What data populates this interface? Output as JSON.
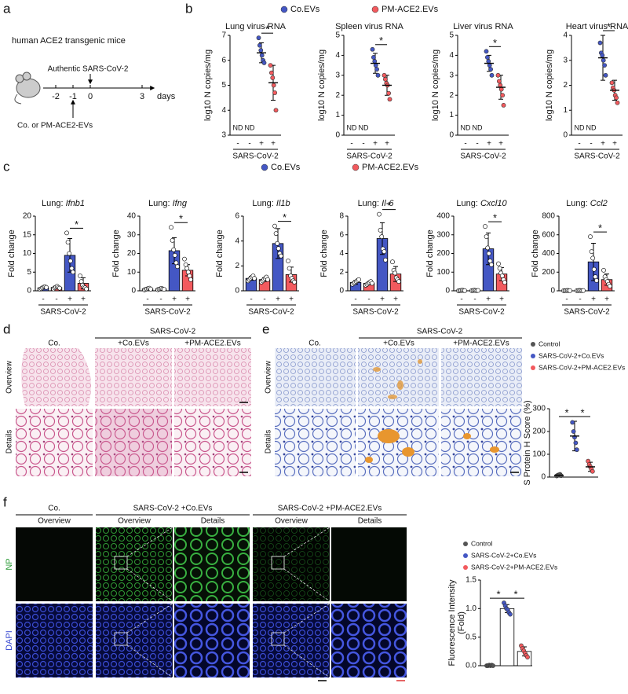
{
  "figure": {
    "panel_labels": [
      "a",
      "b",
      "c",
      "d",
      "e",
      "f"
    ],
    "panel_a": {
      "title": "human ACE2 transgenic mice",
      "infection": "Authentic SARS-CoV-2",
      "treatment": "Co. or PM-ACE2-EVs",
      "timeline": [
        -2,
        -1,
        0,
        3
      ],
      "unit": "days"
    },
    "legend_b": [
      {
        "name": "Co.EVs",
        "color": "#4457c4"
      },
      {
        "name": "PM-ACE2.EVs",
        "color": "#f25a5e"
      }
    ],
    "legend_c": [
      {
        "name": "Co.EVs",
        "color": "#4457c4"
      },
      {
        "name": "PM-ACE2.EVs",
        "color": "#f25a5e"
      }
    ],
    "panel_d": {
      "condition": "SARS-CoV-2",
      "columns": [
        "Co.",
        "+Co.EVs",
        "+PM-ACE2.EVs"
      ],
      "rows": [
        "Overview",
        "Details"
      ]
    },
    "panel_e": {
      "condition": "SARS-CoV-2",
      "columns": [
        "Co.",
        "+Co.EVs",
        "+PM-ACE2.EVs"
      ],
      "rows": [
        "Overview",
        "Details"
      ]
    },
    "panel_f": {
      "columns": [
        "Co.",
        "SARS-CoV-2 +Co.EVs",
        "SARS-CoV-2 +PM-ACE2.EVs"
      ],
      "subcolumns": [
        "Overview",
        "Overview",
        "Details",
        "Overview",
        "Details"
      ],
      "rows": [
        "NP",
        "DAPI"
      ]
    }
  },
  "chart_data": [
    {
      "type": "dot",
      "title": "Lung virus RNA",
      "ylabel": "log10 N copies/mg",
      "ylim": [
        3,
        7
      ],
      "yticks": [
        3,
        4,
        5,
        6,
        7
      ],
      "categories": [
        "-",
        "-",
        "+",
        "+"
      ],
      "group_label": "SARS-CoV-2",
      "colors": [
        "#4457c4",
        "#f25a5e",
        "#4457c4",
        "#f25a5e"
      ],
      "nd_labels": [
        "ND",
        "ND",
        null,
        null
      ],
      "means": [
        null,
        null,
        6.3,
        5.1
      ],
      "errors": [
        null,
        null,
        0.4,
        0.7
      ],
      "points": [
        [],
        [],
        [
          6.9,
          6.6,
          6.4,
          6.2,
          6.0,
          5.9
        ],
        [
          5.8,
          5.5,
          5.3,
          5.0,
          4.7,
          4.0
        ]
      ],
      "significance": [
        {
          "label": "*",
          "groups": [
            2,
            3
          ]
        }
      ]
    },
    {
      "type": "dot",
      "title": "Spleen virus RNA",
      "ylabel": "log10 N copies/mg",
      "ylim": [
        0,
        5
      ],
      "yticks": [
        0,
        1,
        2,
        3,
        4,
        5
      ],
      "categories": [
        "-",
        "-",
        "+",
        "+"
      ],
      "group_label": "SARS-CoV-2",
      "colors": [
        "#4457c4",
        "#f25a5e",
        "#4457c4",
        "#f25a5e"
      ],
      "nd_labels": [
        "ND",
        "ND",
        null,
        null
      ],
      "means": [
        null,
        null,
        3.6,
        2.5
      ],
      "errors": [
        null,
        null,
        0.5,
        0.5
      ],
      "points": [
        [],
        [],
        [
          4.3,
          3.9,
          3.7,
          3.5,
          3.3,
          3.0
        ],
        [
          3.0,
          2.8,
          2.6,
          2.5,
          2.1,
          1.8
        ]
      ],
      "significance": [
        {
          "label": "*",
          "groups": [
            2,
            3
          ]
        }
      ]
    },
    {
      "type": "dot",
      "title": "Liver virus RNA",
      "ylabel": "log10 N copies/mg",
      "ylim": [
        0,
        5
      ],
      "yticks": [
        0,
        1,
        2,
        3,
        4,
        5
      ],
      "categories": [
        "-",
        "-",
        "+",
        "+"
      ],
      "group_label": "SARS-CoV-2",
      "colors": [
        "#4457c4",
        "#f25a5e",
        "#4457c4",
        "#f25a5e"
      ],
      "nd_labels": [
        "ND",
        "ND",
        null,
        null
      ],
      "means": [
        null,
        null,
        3.6,
        2.4
      ],
      "errors": [
        null,
        null,
        0.4,
        0.6
      ],
      "points": [
        [],
        [],
        [
          4.2,
          3.9,
          3.7,
          3.5,
          3.3,
          3.0
        ],
        [
          3.0,
          2.7,
          2.5,
          2.3,
          2.0,
          1.5
        ]
      ],
      "significance": [
        {
          "label": "*",
          "groups": [
            2,
            3
          ]
        }
      ]
    },
    {
      "type": "dot",
      "title": "Heart virus RNA",
      "ylabel": "log10 N copies/mg",
      "ylim": [
        0,
        4
      ],
      "yticks": [
        0,
        1,
        2,
        3,
        4
      ],
      "categories": [
        "-",
        "-",
        "+",
        "+"
      ],
      "group_label": "SARS-CoV-2",
      "colors": [
        "#4457c4",
        "#f25a5e",
        "#4457c4",
        "#f25a5e"
      ],
      "nd_labels": [
        "ND",
        "ND",
        null,
        null
      ],
      "means": [
        null,
        null,
        3.1,
        1.8
      ],
      "errors": [
        null,
        null,
        0.9,
        0.4
      ],
      "points": [
        [],
        [],
        [
          3.7,
          3.3,
          3.2,
          3.0,
          2.8,
          2.4
        ],
        [
          2.1,
          1.9,
          1.8,
          1.6,
          1.5,
          1.3
        ]
      ],
      "significance": [
        {
          "label": "*",
          "groups": [
            2,
            3
          ]
        }
      ]
    },
    {
      "type": "bar",
      "title": "Lung:",
      "gene": "Ifnb1",
      "ylabel": "Fold change",
      "ylim": [
        0,
        20
      ],
      "yticks": [
        0,
        5,
        10,
        15,
        20
      ],
      "categories": [
        "-",
        "-",
        "+",
        "+"
      ],
      "group_label": "SARS-CoV-2",
      "colors": [
        "#4457c4",
        "#f25a5e",
        "#4457c4",
        "#f25a5e"
      ],
      "point_fill": "#ffffff",
      "means": [
        0.8,
        0.9,
        9.5,
        2
      ],
      "errors": [
        0.3,
        0.3,
        4.5,
        1.5
      ],
      "points": [
        [
          0.4,
          0.6,
          0.8,
          1.0,
          1.1,
          0.9
        ],
        [
          0.5,
          0.8,
          1.0,
          1.2,
          0.9,
          0.7
        ],
        [
          15.5,
          13,
          10,
          8,
          6,
          5
        ],
        [
          4,
          2.5,
          1.5,
          1,
          0.8,
          0.5
        ]
      ],
      "significance": [
        {
          "label": "*",
          "groups": [
            2,
            3
          ]
        }
      ]
    },
    {
      "type": "bar",
      "title": "Lung:",
      "gene": "Ifng",
      "ylabel": "Fold change",
      "ylim": [
        0,
        40
      ],
      "yticks": [
        0,
        10,
        20,
        30,
        40
      ],
      "categories": [
        "-",
        "-",
        "+",
        "+"
      ],
      "group_label": "SARS-CoV-2",
      "colors": [
        "#4457c4",
        "#f25a5e",
        "#4457c4",
        "#f25a5e"
      ],
      "point_fill": "#ffffff",
      "means": [
        1,
        1,
        21.5,
        11
      ],
      "errors": [
        0.3,
        0.3,
        7,
        3
      ],
      "points": [
        [
          0.5,
          0.8,
          1.0,
          1.2,
          1.4,
          0.9
        ],
        [
          0.6,
          0.9,
          1.1,
          1.3,
          1.0,
          0.8
        ],
        [
          34,
          27,
          22,
          19,
          15,
          13
        ],
        [
          17,
          14,
          12,
          10,
          8,
          6
        ]
      ],
      "significance": [
        {
          "label": "*",
          "groups": [
            2,
            3
          ]
        }
      ]
    },
    {
      "type": "bar",
      "title": "Lung:",
      "gene": "Il1b",
      "ylabel": "Fold change",
      "ylim": [
        0,
        6
      ],
      "yticks": [
        0,
        2,
        4,
        6
      ],
      "categories": [
        "-",
        "-",
        "+",
        "+"
      ],
      "group_label": "SARS-CoV-2",
      "colors": [
        "#4457c4",
        "#f25a5e",
        "#4457c4",
        "#f25a5e"
      ],
      "point_fill": "#ffffff",
      "means": [
        1,
        0.9,
        3.8,
        1.3
      ],
      "errors": [
        0.15,
        0.15,
        1.2,
        0.6
      ],
      "points": [
        [
          0.8,
          0.9,
          1.0,
          1.1,
          1.2,
          1.0
        ],
        [
          0.7,
          0.8,
          0.9,
          1.0,
          1.1,
          0.9
        ],
        [
          5.2,
          4.6,
          3.8,
          3.4,
          3.0,
          2.8
        ],
        [
          2.4,
          1.8,
          1.2,
          1.0,
          0.8,
          0.7
        ]
      ],
      "significance": [
        {
          "label": "*",
          "groups": [
            2,
            3
          ]
        }
      ]
    },
    {
      "type": "bar",
      "title": "Lung:",
      "gene": "Il-6",
      "ylabel": "Fold change",
      "ylim": [
        0,
        8
      ],
      "yticks": [
        0,
        2,
        4,
        6,
        8
      ],
      "categories": [
        "-",
        "-",
        "+",
        "+"
      ],
      "group_label": "SARS-CoV-2",
      "colors": [
        "#4457c4",
        "#f25a5e",
        "#4457c4",
        "#f25a5e"
      ],
      "point_fill": "#ffffff",
      "means": [
        0.9,
        0.8,
        5.6,
        1.8
      ],
      "errors": [
        0.2,
        0.15,
        1.7,
        0.8
      ],
      "points": [
        [
          0.7,
          0.8,
          0.9,
          1.0,
          1.1,
          1.2
        ],
        [
          0.6,
          0.7,
          0.8,
          0.9,
          1.0,
          0.8
        ],
        [
          8.2,
          6.5,
          5.8,
          4.5,
          4.2,
          3.3
        ],
        [
          3.1,
          2.2,
          1.9,
          1.4,
          1.2,
          1.0
        ]
      ],
      "significance": [
        {
          "label": "*",
          "groups": [
            2,
            3
          ]
        }
      ]
    },
    {
      "type": "bar",
      "title": "Lung:",
      "gene": "Cxcl10",
      "ylabel": "Fold change",
      "ylim": [
        0,
        400
      ],
      "yticks": [
        0,
        100,
        200,
        300,
        400
      ],
      "categories": [
        "-",
        "-",
        "+",
        "+"
      ],
      "group_label": "SARS-CoV-2",
      "colors": [
        "#4457c4",
        "#f25a5e",
        "#4457c4",
        "#f25a5e"
      ],
      "point_fill": "#ffffff",
      "means": [
        2,
        2,
        225,
        90
      ],
      "errors": [
        1,
        1,
        85,
        35
      ],
      "points": [
        [
          0,
          1,
          2,
          3,
          2,
          1
        ],
        [
          1,
          2,
          3,
          2,
          1,
          2
        ],
        [
          345,
          290,
          230,
          200,
          160,
          140
        ],
        [
          145,
          120,
          95,
          80,
          60,
          45
        ]
      ],
      "significance": [
        {
          "label": "*",
          "groups": [
            2,
            3
          ]
        }
      ]
    },
    {
      "type": "bar",
      "title": "Lung:",
      "gene": "Ccl2",
      "ylabel": "Fold change",
      "ylim": [
        0,
        800
      ],
      "yticks": [
        0,
        200,
        400,
        600,
        800
      ],
      "categories": [
        "-",
        "-",
        "+",
        "+"
      ],
      "group_label": "SARS-CoV-2",
      "colors": [
        "#4457c4",
        "#f25a5e",
        "#4457c4",
        "#f25a5e"
      ],
      "point_fill": "#ffffff",
      "means": [
        3,
        3,
        310,
        120
      ],
      "errors": [
        1,
        1,
        200,
        60
      ],
      "points": [
        [
          1,
          2,
          3,
          4,
          3,
          2
        ],
        [
          2,
          3,
          4,
          3,
          2,
          3
        ],
        [
          580,
          420,
          350,
          230,
          150,
          110
        ],
        [
          220,
          150,
          120,
          100,
          70,
          50
        ]
      ],
      "significance": [
        {
          "label": "*",
          "groups": [
            2,
            3
          ]
        }
      ]
    },
    {
      "type": "dot",
      "ylabel": "S Protein H Score (%)",
      "ylim": [
        0,
        300
      ],
      "yticks": [
        0,
        100,
        200,
        300
      ],
      "categories": [
        null,
        null,
        null
      ],
      "colors": [
        "#555555",
        "#4457c4",
        "#f25a5e"
      ],
      "legend": [
        {
          "name": "Control",
          "color": "#555555"
        },
        {
          "name": "SARS-CoV-2+Co.EVs",
          "color": "#4457c4"
        },
        {
          "name": "SARS-CoV-2+PM-ACE2.EVs",
          "color": "#f25a5e"
        }
      ],
      "means": [
        8,
        180,
        45
      ],
      "errors": [
        4,
        65,
        20
      ],
      "points": [
        [
          5,
          8,
          10,
          12,
          6
        ],
        [
          240,
          200,
          175,
          150,
          120
        ],
        [
          70,
          55,
          45,
          35,
          25
        ]
      ],
      "significance": [
        {
          "label": "*",
          "groups": [
            0,
            1
          ]
        },
        {
          "label": "*",
          "groups": [
            1,
            2
          ]
        }
      ]
    },
    {
      "type": "bar",
      "ylabel": [
        "Fluorescence Intensity",
        "(Fold)"
      ],
      "ylim": [
        0,
        1.5
      ],
      "yticks": [
        {
          "value": 0,
          "label": "0.0"
        },
        0.5,
        {
          "value": 1,
          "label": "1.0"
        },
        1.5
      ],
      "categories": [
        null,
        null,
        null
      ],
      "colors": [
        "#555555",
        "#4457c4",
        "#f25a5e"
      ],
      "bar_fill": "#ffffff",
      "legend": [
        {
          "name": "Control",
          "color": "#555555"
        },
        {
          "name": "SARS-CoV-2+Co.EVs",
          "color": "#4457c4"
        },
        {
          "name": "SARS-CoV-2+PM-ACE2.EVs",
          "color": "#f25a5e"
        }
      ],
      "means": [
        0,
        1,
        0.25
      ],
      "errors": [
        0.01,
        0.07,
        0.08
      ],
      "points": [
        [
          0,
          0,
          0.01,
          0,
          0.01,
          0
        ],
        [
          1.1,
          1.05,
          1.0,
          0.98,
          0.93,
          0.9
        ],
        [
          0.35,
          0.3,
          0.26,
          0.22,
          0.18,
          0.15
        ]
      ],
      "significance": [
        {
          "label": "*",
          "groups": [
            0,
            1
          ]
        },
        {
          "label": "*",
          "groups": [
            1,
            2
          ]
        }
      ]
    }
  ]
}
